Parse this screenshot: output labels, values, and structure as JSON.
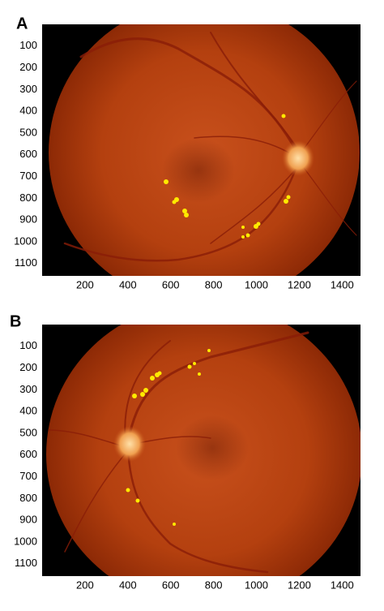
{
  "panels": [
    {
      "label": "A",
      "yticks": [
        100,
        200,
        300,
        400,
        500,
        600,
        700,
        800,
        900,
        1000,
        1100
      ],
      "xticks": [
        200,
        400,
        600,
        800,
        1000,
        1200,
        1400
      ]
    },
    {
      "label": "B",
      "yticks": [
        100,
        200,
        300,
        400,
        500,
        600,
        700,
        800,
        900,
        1000,
        1100
      ],
      "xticks": [
        200,
        400,
        600,
        800,
        1000,
        1200,
        1400
      ]
    }
  ]
}
